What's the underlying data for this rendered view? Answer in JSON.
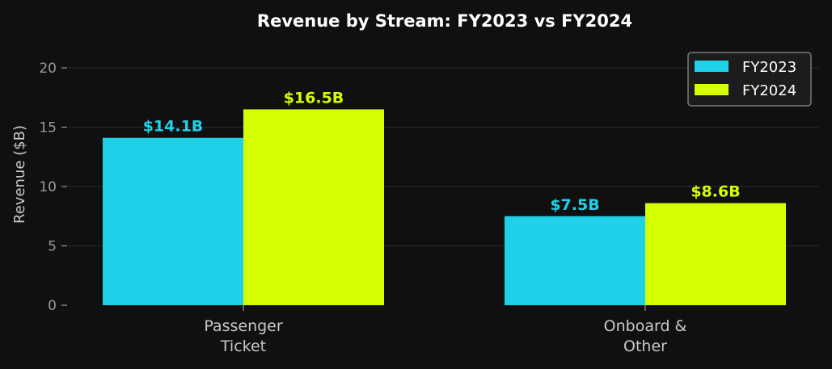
{
  "chart_data": {
    "type": "bar",
    "title": "Revenue by Stream: FY2023 vs FY2024",
    "xlabel": "",
    "ylabel": "Revenue ($B)",
    "ylim": [
      0,
      22
    ],
    "yticks": [
      0,
      5,
      10,
      15,
      20
    ],
    "ytick_labels": [
      "0",
      "5",
      "10",
      "15",
      "20"
    ],
    "grid": true,
    "legend_position": "top-right",
    "categories": [
      [
        "Passenger",
        "Ticket"
      ],
      [
        "Onboard &",
        "Other"
      ]
    ],
    "series": [
      {
        "name": "FY2023",
        "color": "#1fd1e8",
        "values": [
          14.1,
          7.5
        ],
        "labels": [
          "$14.1B",
          "$7.5B"
        ]
      },
      {
        "name": "FY2024",
        "color": "#d4ff00",
        "values": [
          16.5,
          8.6
        ],
        "labels": [
          "$16.5B",
          "$8.6B"
        ]
      }
    ]
  }
}
